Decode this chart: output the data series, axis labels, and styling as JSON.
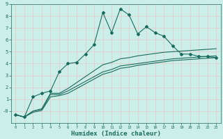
{
  "xlabel": "Humidex (Indice chaleur)",
  "bg_color": "#cceee8",
  "grid_color_minor": "#b8ddd6",
  "grid_color_major": "#e8c8c8",
  "line_color": "#1a6b5e",
  "xlim": [
    -0.5,
    23.5
  ],
  "ylim": [
    -1,
    9
  ],
  "xticks": [
    0,
    1,
    2,
    3,
    4,
    5,
    6,
    7,
    8,
    9,
    10,
    11,
    12,
    13,
    14,
    15,
    16,
    17,
    18,
    19,
    20,
    21,
    22,
    23
  ],
  "yticks": [
    0,
    1,
    2,
    3,
    4,
    5,
    6,
    7,
    8,
    9
  ],
  "series1_x": [
    0,
    1,
    2,
    3,
    4,
    5,
    6,
    7,
    8,
    9,
    10,
    11,
    12,
    13,
    14,
    15,
    16,
    17,
    18,
    19,
    20,
    21,
    22,
    23
  ],
  "series1_y": [
    -0.3,
    -0.5,
    1.2,
    1.5,
    1.7,
    3.3,
    4.0,
    4.1,
    4.8,
    5.6,
    8.3,
    6.6,
    8.6,
    8.1,
    6.5,
    7.1,
    6.6,
    6.3,
    5.5,
    4.8,
    4.8,
    4.6,
    4.6,
    4.5
  ],
  "series2_x": [
    0,
    1,
    2,
    3,
    4,
    5,
    6,
    7,
    8,
    9,
    10,
    11,
    12,
    13,
    14,
    15,
    16,
    17,
    18,
    19,
    20,
    21,
    22,
    23
  ],
  "series2_y": [
    -0.3,
    -0.5,
    0.0,
    0.2,
    1.5,
    1.5,
    1.9,
    2.4,
    2.9,
    3.4,
    3.9,
    4.1,
    4.4,
    4.5,
    4.65,
    4.75,
    4.85,
    4.95,
    5.0,
    5.05,
    5.1,
    5.15,
    5.2,
    5.25
  ],
  "series3_x": [
    0,
    1,
    2,
    3,
    4,
    5,
    6,
    7,
    8,
    9,
    10,
    11,
    12,
    13,
    14,
    15,
    16,
    17,
    18,
    19,
    20,
    21,
    22,
    23
  ],
  "series3_y": [
    -0.3,
    -0.5,
    0.0,
    0.15,
    1.4,
    1.4,
    1.7,
    2.1,
    2.5,
    2.9,
    3.3,
    3.5,
    3.8,
    3.9,
    4.0,
    4.1,
    4.2,
    4.3,
    4.4,
    4.45,
    4.5,
    4.55,
    4.6,
    4.65
  ],
  "series4_x": [
    0,
    1,
    2,
    3,
    4,
    5,
    6,
    7,
    8,
    9,
    10,
    11,
    12,
    13,
    14,
    15,
    16,
    17,
    18,
    19,
    20,
    21,
    22,
    23
  ],
  "series4_y": [
    -0.3,
    -0.5,
    -0.1,
    0.05,
    1.2,
    1.3,
    1.5,
    1.9,
    2.3,
    2.7,
    3.1,
    3.3,
    3.6,
    3.7,
    3.85,
    3.95,
    4.05,
    4.15,
    4.25,
    4.3,
    4.35,
    4.4,
    4.45,
    4.5
  ]
}
